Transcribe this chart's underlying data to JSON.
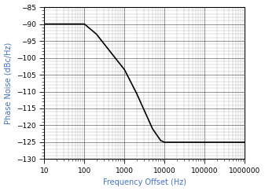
{
  "title": "",
  "xlabel": "Frequency Offset (Hz)",
  "ylabel": "Phase Noise (dBc/Hz)",
  "xlim": [
    10,
    1000000
  ],
  "ylim": [
    -130,
    -85
  ],
  "yticks": [
    -130,
    -125,
    -120,
    -115,
    -110,
    -105,
    -100,
    -95,
    -90,
    -85
  ],
  "line_x": [
    10,
    100,
    200,
    500,
    1000,
    2000,
    5000,
    8000,
    10000,
    20000,
    1000000
  ],
  "line_y": [
    -90,
    -90,
    -93.0,
    -99.0,
    -103.5,
    -110.5,
    -121.0,
    -124.5,
    -125,
    -125,
    -125
  ],
  "line_color": "#000000",
  "line_width": 1.2,
  "grid_major_color": "#000000",
  "grid_minor_color": "#000000",
  "grid_major_alpha": 0.6,
  "grid_minor_alpha": 0.3,
  "grid_major_lw": 0.5,
  "grid_minor_lw": 0.3,
  "bg_color": "#ffffff",
  "label_color": "#4472C4",
  "tick_label_color": "#000000",
  "font_size": 6.5,
  "axis_label_font_size": 7
}
